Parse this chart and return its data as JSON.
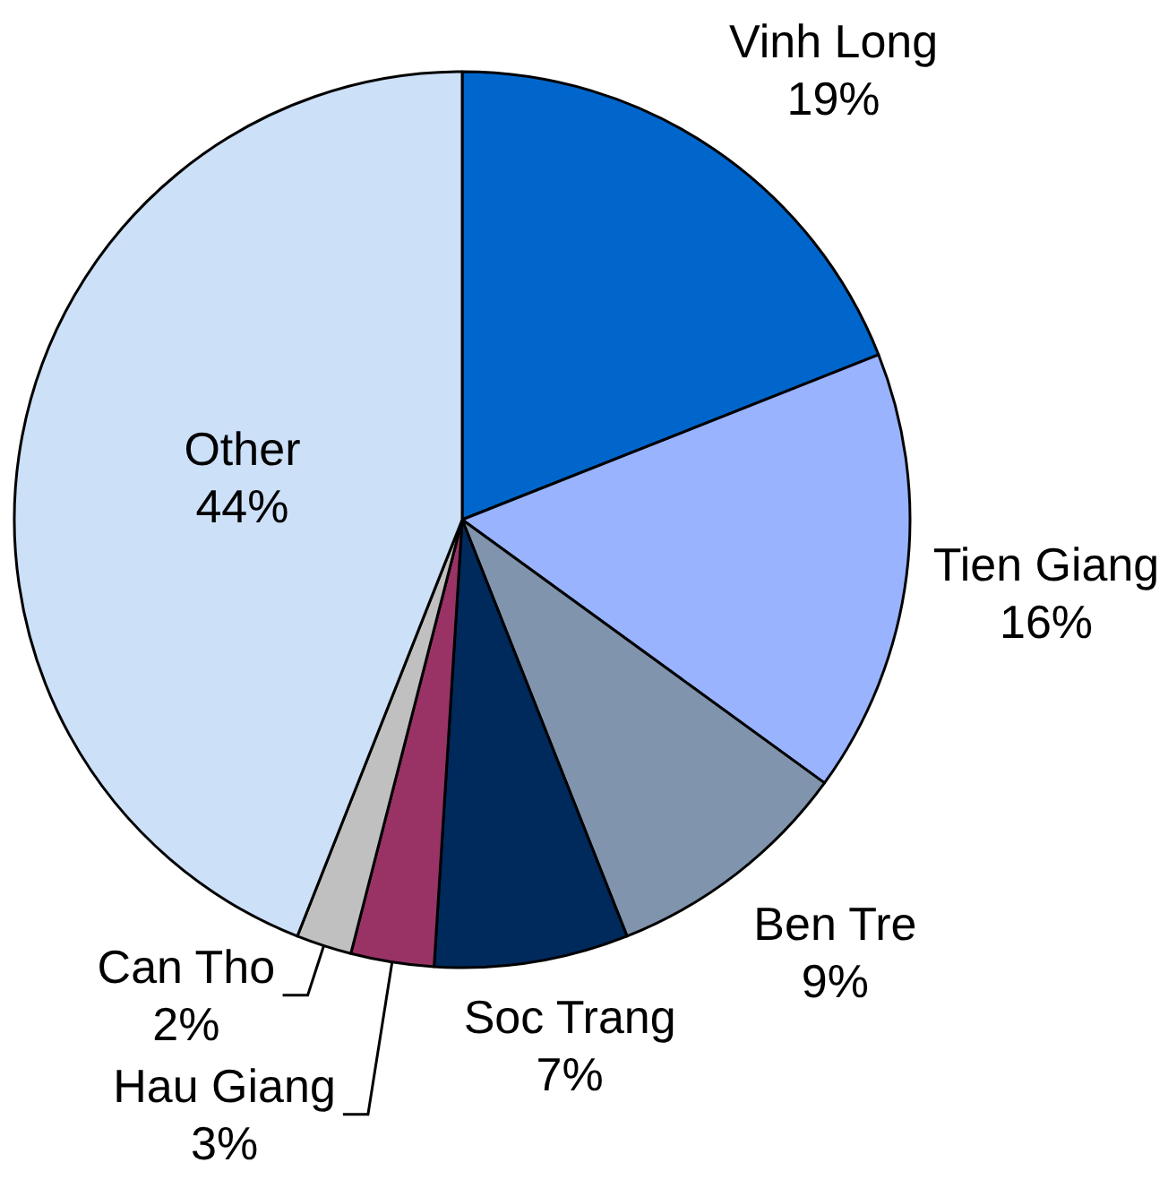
{
  "chart_data": {
    "type": "pie",
    "categories": [
      "Vinh Long",
      "Tien Giang",
      "Ben Tre",
      "Soc Trang",
      "Hau Giang",
      "Can Tho",
      "Other"
    ],
    "values": [
      19,
      16,
      9,
      7,
      3,
      2,
      44
    ],
    "colors": [
      "#0066cc",
      "#99b3ff",
      "#8094ad",
      "#00295c",
      "#993366",
      "#c0c0c0",
      "#cce0f8"
    ],
    "value_labels": [
      "19%",
      "16%",
      "9%",
      "7%",
      "3%",
      "2%",
      "44%"
    ]
  }
}
